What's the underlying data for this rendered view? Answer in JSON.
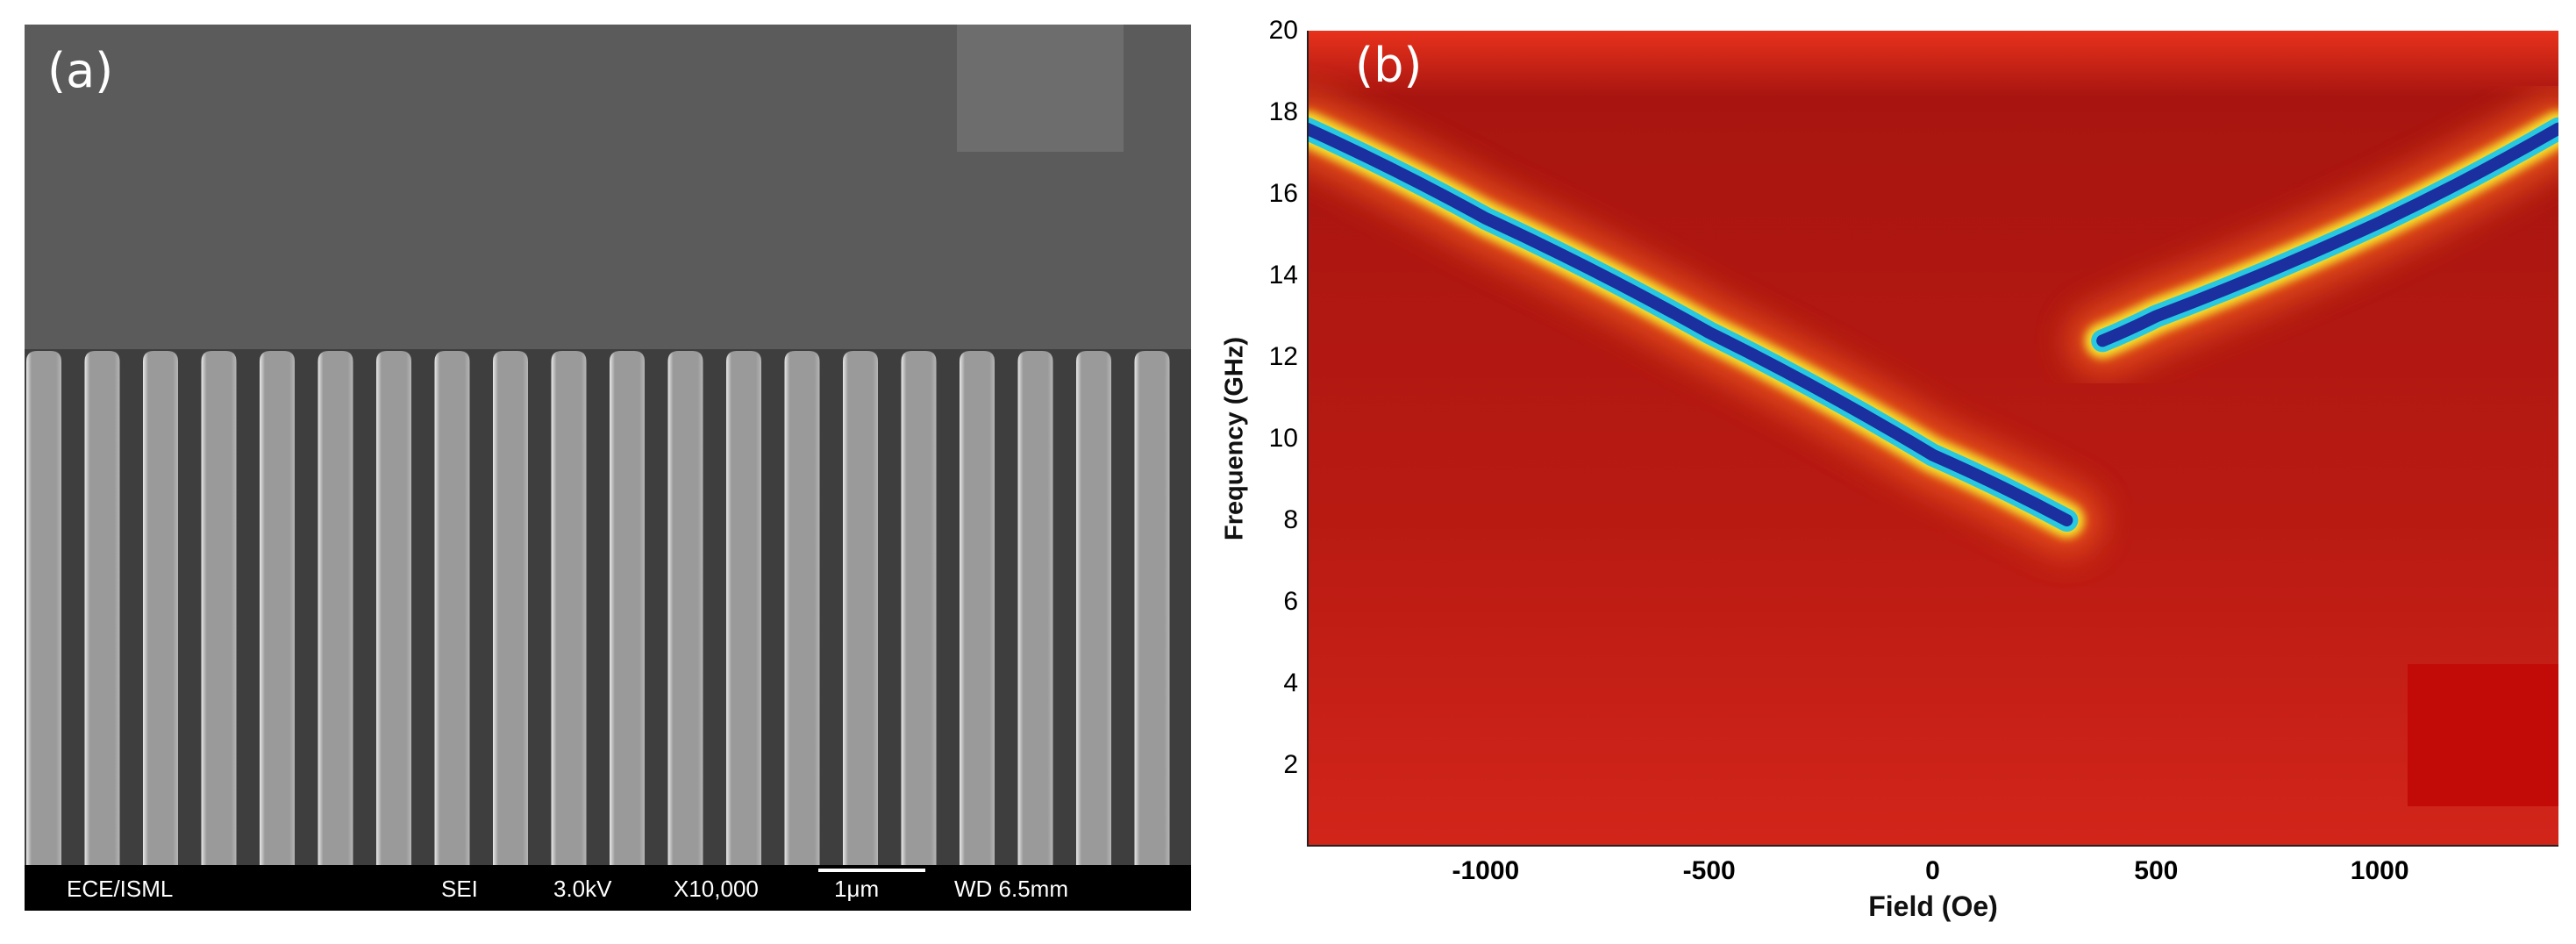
{
  "figure": {
    "panel_a": {
      "label": "(a)",
      "image_description_name": "sem-micrograph-nanowire-array",
      "infobar": {
        "lab": "ECE/ISML",
        "mode": "SEI",
        "voltage": "3.0kV",
        "magnification": "X10,000",
        "scale": "1μm",
        "working_distance": "WD 6.5mm"
      },
      "colors": {
        "background": "#5b5b5b",
        "wire": "#9a9a9a",
        "gap": "#3e3e3e",
        "edge": "#e8e8e8"
      }
    },
    "panel_b": {
      "label": "(b)",
      "colors": {
        "background": "#b01a12",
        "dispersion_core": "#1b2f9e",
        "dispersion_edge": "#28c8e0",
        "glow": "#f5e12a"
      }
    }
  },
  "chart_data": {
    "type": "heatmap",
    "title": "",
    "xlabel": "Field (Oe)",
    "ylabel": "Frequency (GHz)",
    "xlim": [
      -1400,
      1400
    ],
    "ylim": [
      0,
      20
    ],
    "x_ticks": [
      "-1000",
      "-500",
      "0",
      "500",
      "1000"
    ],
    "x_tick_values": [
      -1000,
      -500,
      0,
      500,
      1000
    ],
    "y_ticks": [
      "2",
      "4",
      "6",
      "8",
      "10",
      "12",
      "14",
      "16",
      "18",
      "20"
    ],
    "y_tick_values": [
      2,
      4,
      6,
      8,
      10,
      12,
      14,
      16,
      18,
      20
    ],
    "series": [
      {
        "name": "mode-branch-negative-field",
        "x": [
          -1400,
          -1000,
          -500,
          0,
          300
        ],
        "y": [
          17.6,
          15.4,
          12.6,
          9.6,
          8.0
        ]
      },
      {
        "name": "mode-branch-positive-field",
        "x": [
          380,
          500,
          1000,
          1400
        ],
        "y": [
          12.4,
          13.0,
          15.3,
          17.6
        ]
      }
    ]
  }
}
